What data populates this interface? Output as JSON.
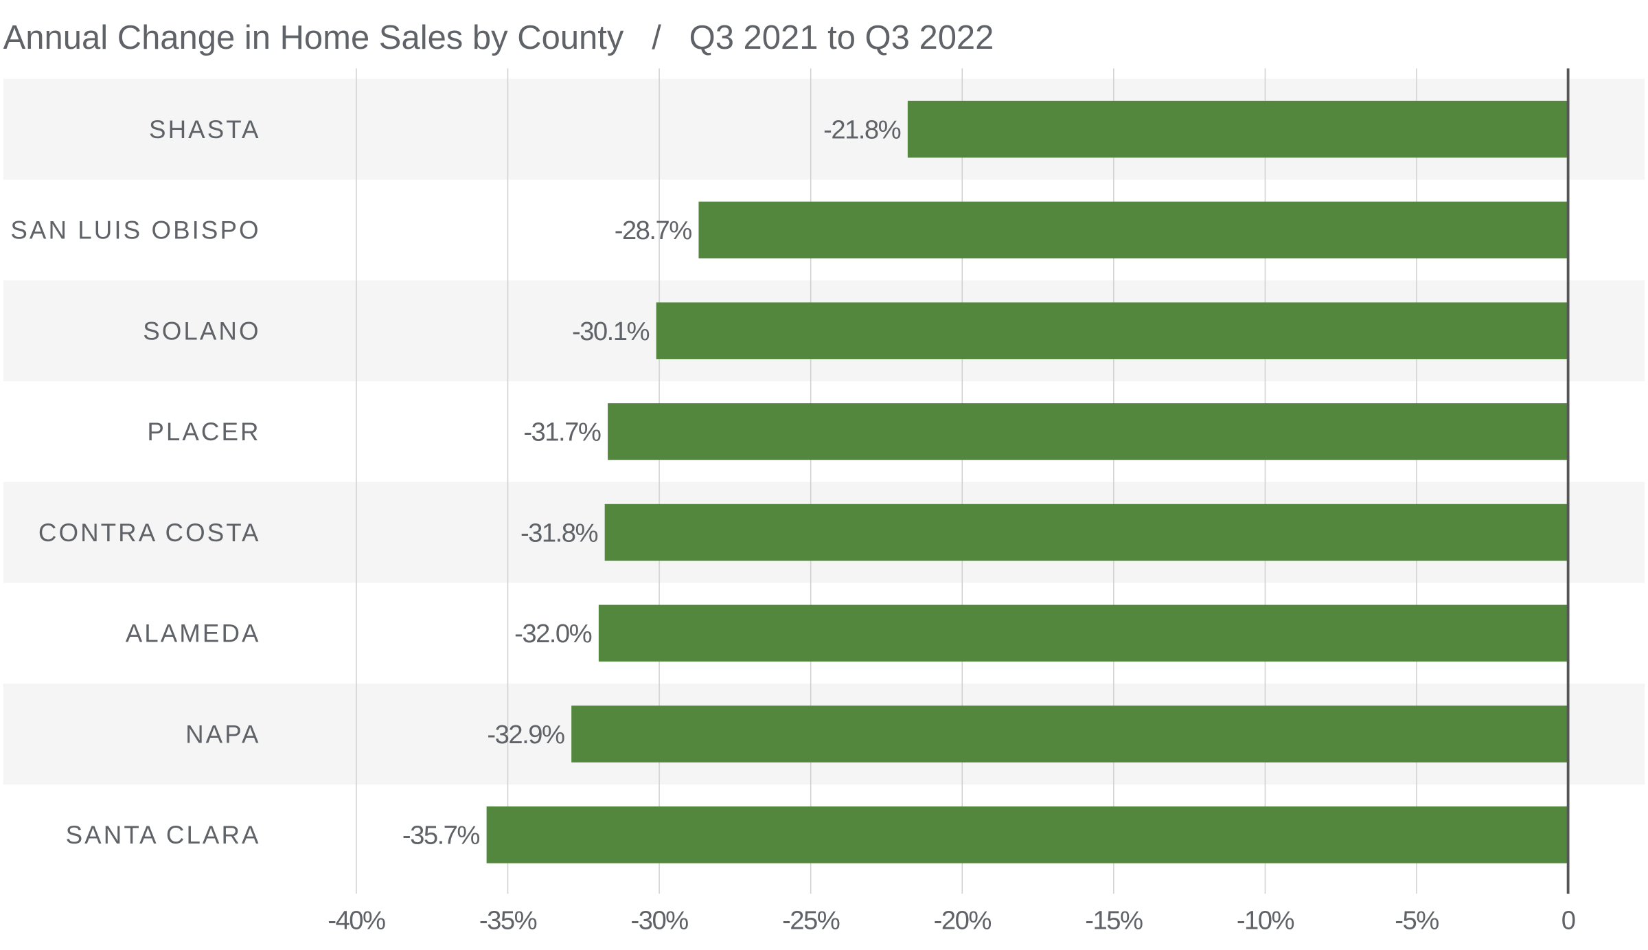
{
  "chart_data": {
    "type": "hbar",
    "title": "Annual Change in Home Sales by County   /   Q3 2021 to Q3 2022",
    "categories": [
      "SHASTA",
      "SAN LUIS OBISPO",
      "SOLANO",
      "PLACER",
      "CONTRA COSTA",
      "ALAMEDA",
      "NAPA",
      "SANTA CLARA"
    ],
    "values": [
      -21.8,
      -28.7,
      -30.1,
      -31.7,
      -31.8,
      -32.0,
      -32.9,
      -35.7
    ],
    "value_labels": [
      "-21.8%",
      "-28.7%",
      "-30.1%",
      "-31.7%",
      "-31.8%",
      "-32.0%",
      "-32.9%",
      "-35.7%"
    ],
    "color": "#53873d",
    "xlim": [
      -40,
      0
    ],
    "xticks": [
      {
        "value": -40,
        "label": "-40%"
      },
      {
        "value": -35,
        "label": "-35%"
      },
      {
        "value": -30,
        "label": "-30%"
      },
      {
        "value": -25,
        "label": "-25%"
      },
      {
        "value": -20,
        "label": "-20%"
      },
      {
        "value": -15,
        "label": "-15%"
      },
      {
        "value": -10,
        "label": "-10%"
      },
      {
        "value": -5,
        "label": "-5%"
      },
      0
    ],
    "grid": true
  }
}
